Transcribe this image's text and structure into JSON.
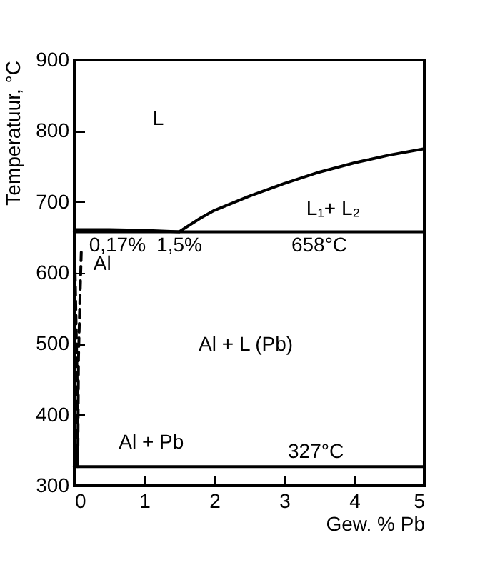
{
  "chart_data": {
    "type": "line",
    "xlabel": "Gew. %  Pb",
    "ylabel": "Temperatuur, °C",
    "xlim": [
      0,
      5
    ],
    "ylim": [
      300,
      900
    ],
    "xticks": [
      0,
      1,
      2,
      3,
      4,
      5
    ],
    "yticks": [
      300,
      400,
      500,
      600,
      700,
      800,
      900
    ],
    "grid": false,
    "marker": "none",
    "series": [
      {
        "color": "#000000",
        "x": [
          0,
          0.5,
          1,
          1.5
        ],
        "values": [
          661,
          661,
          660,
          658
        ]
      },
      {
        "color": "#000000",
        "x": [
          1.5,
          1.8,
          2,
          2.5,
          3,
          3.5,
          4,
          4.5,
          5
        ],
        "values": [
          658,
          677,
          688,
          708,
          726,
          742,
          755,
          766,
          775
        ]
      },
      {
        "color": "#000000",
        "x": [
          0,
          5
        ],
        "values": [
          658,
          658
        ]
      },
      {
        "color": "#000000",
        "x": [
          0,
          5
        ],
        "values": [
          327,
          327
        ]
      },
      {
        "color": "#000000",
        "line_style": "dashed",
        "x": [
          0,
          0.1,
          0.08,
          0.06,
          0.05,
          0.05
        ],
        "values": [
          661,
          630,
          560,
          480,
          400,
          327
        ]
      }
    ],
    "annotations": [
      "L",
      "L₁+ L₂",
      {
        "text": "0,17%",
        "x": 0.17,
        "y": 658
      },
      {
        "text": "1,5%",
        "x": 1.5,
        "y": 658
      },
      {
        "text": "658°C",
        "x": 3.5,
        "y": 658
      },
      "Al",
      "Al + L (Pb)",
      "Al + Pb",
      {
        "text": "327°C",
        "x": 3.45,
        "y": 327
      }
    ]
  }
}
